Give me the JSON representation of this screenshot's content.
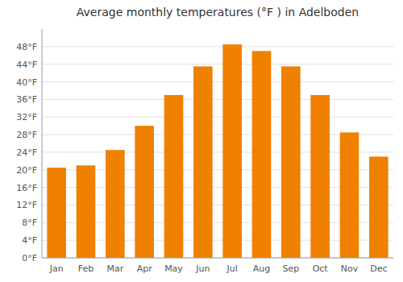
{
  "chart_data": {
    "type": "bar",
    "title": "Average monthly temperatures (°F ) in Adelboden",
    "categories": [
      "Jan",
      "Feb",
      "Mar",
      "Apr",
      "May",
      "Jun",
      "Jul",
      "Aug",
      "Sep",
      "Oct",
      "Nov",
      "Dec"
    ],
    "values": [
      20.5,
      21.0,
      24.5,
      30.0,
      37.0,
      43.5,
      48.5,
      47.0,
      43.5,
      37.0,
      28.5,
      23.0
    ],
    "color": "#F08000",
    "ylim": [
      0,
      52
    ],
    "yticks": [
      {
        "value": 0,
        "label": "0°F"
      },
      {
        "value": 4,
        "label": "4°F"
      },
      {
        "value": 8,
        "label": "8°F"
      },
      {
        "value": 12,
        "label": "12°F"
      },
      {
        "value": 16,
        "label": "16°F"
      },
      {
        "value": 20,
        "label": "20°F"
      },
      {
        "value": 24,
        "label": "24°F"
      },
      {
        "value": 28,
        "label": "28°F"
      },
      {
        "value": 32,
        "label": "32°F"
      },
      {
        "value": 36,
        "label": "36°F"
      },
      {
        "value": 40,
        "label": "40°F"
      },
      {
        "value": 44,
        "label": "44°F"
      },
      {
        "value": 48,
        "label": "48°F"
      }
    ],
    "grid": true
  }
}
